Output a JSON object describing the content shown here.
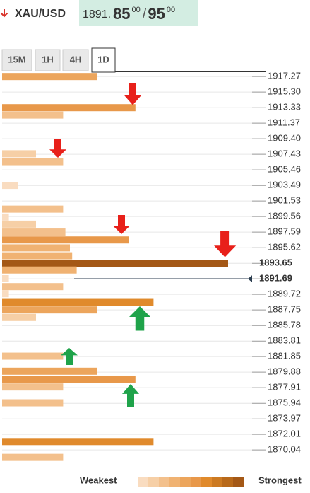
{
  "header": {
    "symbol": "XAU/USD",
    "price_prefix": "1891.",
    "bid_big": "85",
    "bid_small": "00",
    "separator": "/",
    "ask_big": "95",
    "ask_small": "00"
  },
  "tabs": [
    "15M",
    "1H",
    "4H",
    "1D"
  ],
  "active_tab": 3,
  "chart_data": {
    "type": "confluence",
    "ylim": [
      1868.3,
      1918.0
    ],
    "yticks": [
      1917.27,
      {
        "value": 1915.3,
        "label": "1915.30"
      },
      1913.33,
      1911.37,
      {
        "value": 1909.4,
        "label": "1909.40"
      },
      1907.43,
      1905.46,
      1903.49,
      1901.53,
      1899.56,
      1897.59,
      1895.62,
      1893.65,
      1891.69,
      1889.72,
      1887.75,
      1885.78,
      1883.81,
      1881.85,
      1879.88,
      1877.91,
      1875.94,
      1873.97,
      1872.01,
      1870.04
    ],
    "current_price": 1891.69,
    "levels": [
      1917.27,
      1913.33,
      1912.4,
      1907.5,
      1906.5,
      1903.5,
      1900.5,
      1899.5,
      1898.6,
      1897.6,
      1896.6,
      1895.6,
      1894.6,
      1893.65,
      1892.8,
      1891.7,
      1890.7,
      1889.8,
      1888.7,
      1887.75,
      1886.8,
      1881.9,
      1880.0,
      1879.0,
      1878.0,
      1876.0,
      1871.1,
      1869.1
    ],
    "strength": [
      4.2,
      5.9,
      2.7,
      1.5,
      2.7,
      0.7,
      2.7,
      0.3,
      1.5,
      2.8,
      5.6,
      3.0,
      3.1,
      10,
      3.3,
      0.3,
      2.7,
      0.3,
      6.7,
      4.2,
      1.5,
      2.7,
      4.2,
      5.9,
      2.7,
      2.7,
      6.7,
      2.7
    ],
    "max_strength": 10,
    "legend": {
      "weakest": "Weakest",
      "strongest": "Strongest",
      "colors": [
        "#f9dcc0",
        "#f6cfa6",
        "#f3c08c",
        "#f0b272",
        "#eca55c",
        "#e8984a",
        "#e08a2c",
        "#cc7a22",
        "#b8691a",
        "#a45816"
      ]
    }
  }
}
